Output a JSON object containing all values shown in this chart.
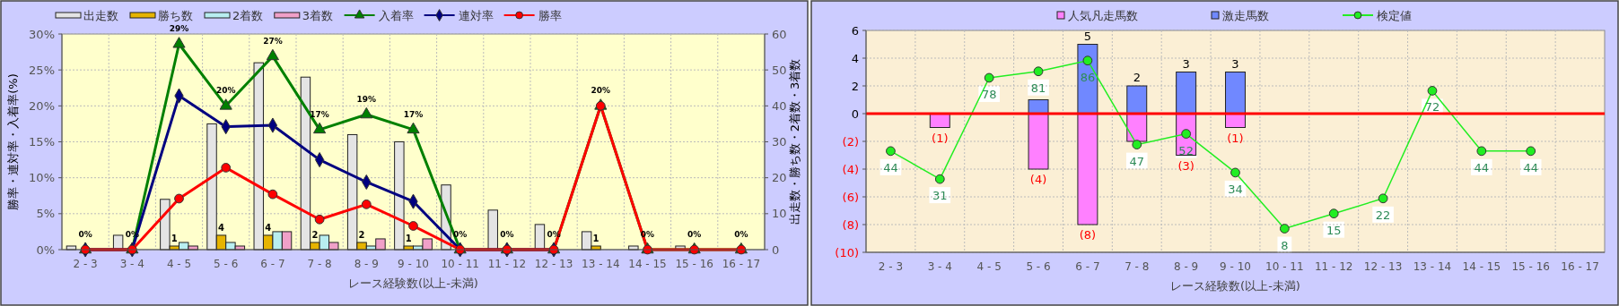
{
  "chart_data": [
    {
      "type": "bar",
      "categories": [
        "2 - 3",
        "3 - 4",
        "4 - 5",
        "5 - 6",
        "6 - 7",
        "7 - 8",
        "8 - 9",
        "9 - 10",
        "10 - 11",
        "11 - 12",
        "12 - 13",
        "13 - 14",
        "14 - 15",
        "15 - 16",
        "16 - 17"
      ],
      "xlabel": "レース経験数(以上-未満)",
      "ylabel": "勝率・連対率・入着率(%)",
      "y2label": "出走数・勝ち数・2着数・3着数",
      "ylim": [
        0,
        30
      ],
      "yticks": [
        {
          "value": 0,
          "label": "0%"
        },
        {
          "value": 5,
          "label": "5%"
        },
        {
          "value": 10,
          "label": "10%"
        },
        {
          "value": 15,
          "label": "15%"
        },
        {
          "value": 20,
          "label": "20%"
        },
        {
          "value": 25,
          "label": "25%"
        },
        {
          "value": 30,
          "label": "30%"
        }
      ],
      "y2lim": [
        0,
        60
      ],
      "y2ticks": [
        0,
        10,
        20,
        30,
        40,
        50,
        60
      ],
      "grid": true,
      "legend": "top",
      "series": [
        {
          "name": "出走数",
          "type": "bar",
          "axis": "y2",
          "color": "#e4e4e4",
          "values": [
            1,
            4,
            14,
            35,
            52,
            48,
            32,
            30,
            18,
            11,
            7,
            5,
            1,
            1,
            0
          ]
        },
        {
          "name": "勝ち数",
          "type": "bar",
          "axis": "y2",
          "color": "#e6b400",
          "values": [
            0,
            0,
            1,
            4,
            4,
            2,
            2,
            1,
            0,
            0,
            0,
            1,
            0,
            0,
            0
          ],
          "value_labels": [
            null,
            null,
            "1",
            "4",
            "4",
            "2",
            "2",
            "1",
            null,
            null,
            null,
            "1",
            null,
            null,
            null
          ]
        },
        {
          "name": "2着数",
          "type": "bar",
          "axis": "y2",
          "color": "#b8eef0",
          "values": [
            0,
            0,
            2,
            2,
            5,
            4,
            1,
            1,
            0,
            0,
            0,
            0,
            0,
            0,
            0
          ]
        },
        {
          "name": "3着数",
          "type": "bar",
          "axis": "y2",
          "color": "#f0a0c8",
          "values": [
            0,
            0,
            1,
            1,
            5,
            2,
            3,
            3,
            0,
            0,
            0,
            0,
            0,
            0,
            0
          ]
        },
        {
          "name": "入着率",
          "type": "line",
          "color": "#008000",
          "marker": "triangle",
          "values": [
            0,
            0,
            28.6,
            20,
            26.9,
            16.7,
            18.8,
            16.7,
            0,
            0,
            0,
            20,
            0,
            0,
            0
          ],
          "value_labels": [
            "0%",
            "0%",
            "29%",
            "20%",
            "27%",
            "17%",
            "19%",
            "17%",
            "0%",
            "0%",
            "0%",
            "20%",
            "0%",
            "0%",
            "0%"
          ]
        },
        {
          "name": "連対率",
          "type": "line",
          "color": "#000080",
          "marker": "diamond",
          "values": [
            0,
            0,
            21.4,
            17.1,
            17.3,
            12.5,
            9.4,
            6.7,
            0,
            0,
            0,
            null,
            null,
            null,
            null
          ]
        },
        {
          "name": "勝率",
          "type": "line",
          "color": "#ff0000",
          "marker": "circle",
          "values": [
            0,
            0,
            7.1,
            11.4,
            7.7,
            4.2,
            6.3,
            3.3,
            0,
            0,
            0,
            20,
            0,
            0,
            0
          ]
        }
      ]
    },
    {
      "type": "bar",
      "stacked": true,
      "categories": [
        "2 - 3",
        "3 - 4",
        "4 - 5",
        "5 - 6",
        "6 - 7",
        "7 - 8",
        "8 - 9",
        "9 - 10",
        "10 - 11",
        "11 - 12",
        "12 - 13",
        "13 - 14",
        "14 - 15",
        "15 - 16",
        "16 - 17"
      ],
      "xlabel": "レース経験数(以上-未満)",
      "ylim": [
        -10,
        6
      ],
      "yticks": [
        {
          "value": -10,
          "label": "(10)"
        },
        {
          "value": -8,
          "label": "(8)"
        },
        {
          "value": -6,
          "label": "(6)"
        },
        {
          "value": -4,
          "label": "(4)"
        },
        {
          "value": -2,
          "label": "(2)"
        },
        0,
        2,
        4,
        6
      ],
      "y2lim": [
        -3,
        100
      ],
      "grid": true,
      "legend": "top",
      "ref_lines": [
        {
          "axis": "y",
          "value": 0,
          "color": "#ff0000"
        }
      ],
      "series": [
        {
          "name": "人気凡走馬数",
          "type": "bar",
          "color": "#ff80ff",
          "values": [
            0,
            -1,
            0,
            -4,
            -8,
            -2,
            -3,
            -1,
            0,
            0,
            0,
            0,
            0,
            0,
            0
          ],
          "value_labels": [
            null,
            "(1)",
            null,
            "(4)",
            "(8)",
            null,
            "(3)",
            "(1)",
            null,
            null,
            null,
            null,
            null,
            null,
            null
          ]
        },
        {
          "name": "激走馬数",
          "type": "bar",
          "color": "#7088ff",
          "values": [
            0,
            0,
            0,
            1,
            5,
            2,
            3,
            3,
            0,
            0,
            0,
            0,
            0,
            0,
            0
          ],
          "value_labels": [
            null,
            null,
            null,
            null,
            "5",
            "2",
            "3",
            "3",
            null,
            null,
            null,
            null,
            null,
            null,
            null
          ]
        },
        {
          "name": "検定値",
          "type": "line",
          "axis": "y2",
          "color": "#22ee22",
          "marker": "circle",
          "values": [
            44,
            31,
            78,
            81,
            86,
            47,
            52,
            34,
            8,
            15,
            22,
            72,
            44,
            44,
            null
          ],
          "value_labels": [
            "44",
            "31",
            "78",
            "81",
            "86",
            "47",
            "52",
            "34",
            "8",
            "15",
            "22",
            "72",
            "44",
            "44",
            null
          ]
        }
      ]
    }
  ]
}
